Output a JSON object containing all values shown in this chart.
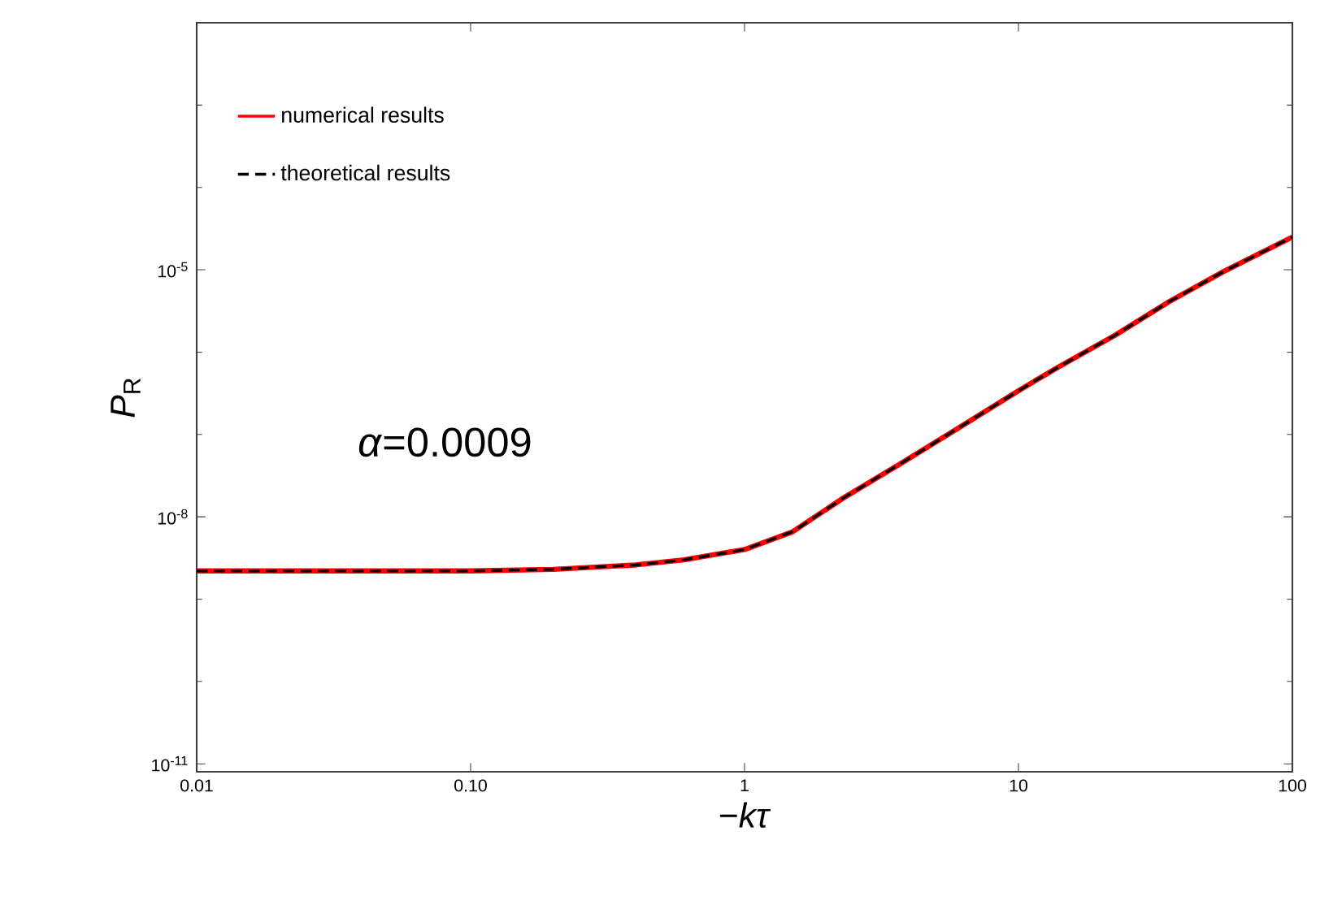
{
  "chart_data": {
    "type": "line",
    "xlabel": "−*kτ*",
    "ylabel": "*P*$_{R}$",
    "log": "xy",
    "annotations": [
      "*α*=0.0009"
    ],
    "x": [
      0.01,
      0.03,
      0.1,
      0.2,
      0.4,
      0.6,
      1,
      1.5,
      2.3,
      3.7,
      5.8,
      10,
      14,
      22.5,
      35.5,
      56,
      100
    ],
    "series": [
      {
        "name": "numerical results",
        "color": "#ff0000",
        "line_style": "solid",
        "values": [
          2.2e-09,
          2.2e-09,
          2.2e-09,
          2.3e-09,
          2.6e-09,
          3e-09,
          4e-09,
          6.6e-09,
          1.7e-08,
          4.4e-08,
          1.1e-07,
          3.4e-07,
          6.6e-07,
          1.6e-06,
          4.1e-06,
          9.5e-06,
          2.5e-05
        ]
      },
      {
        "name": "theoretical results",
        "color": "#000000",
        "line_style": "dashed",
        "values": [
          2.2e-09,
          2.2e-09,
          2.2e-09,
          2.3e-09,
          2.6e-09,
          3e-09,
          4e-09,
          6.6e-09,
          1.7e-08,
          4.4e-08,
          1.1e-07,
          3.4e-07,
          6.6e-07,
          1.6e-06,
          4.1e-06,
          9.5e-06,
          2.5e-05
        ]
      }
    ],
    "xlim": [
      0.01,
      100
    ],
    "ylim": [
      8e-12,
      0.01
    ],
    "xticks": [
      0.01,
      {
        "value": 0.1,
        "label": "0.10"
      },
      1,
      10,
      100
    ],
    "yticks": [
      {
        "value": 1e-11,
        "label": "10$^{-11}$"
      },
      {
        "value": 1e-08,
        "label": "10$^{-8}$"
      },
      {
        "value": 1e-05,
        "label": "10$^{-5}$"
      }
    ],
    "grid": false,
    "legend": "top left",
    "marker": "none"
  }
}
